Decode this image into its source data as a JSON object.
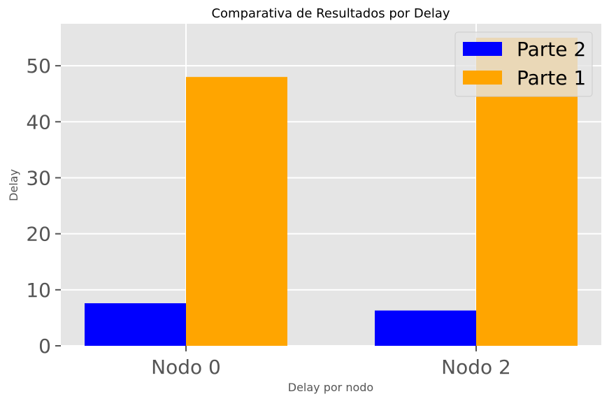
{
  "chart_data": {
    "type": "bar",
    "title": "Comparativa de Resultados por Delay",
    "xlabel": "Delay por nodo",
    "ylabel": "Delay",
    "categories": [
      "Nodo 0",
      "Nodo 2"
    ],
    "series": [
      {
        "name": "Parte 2",
        "values": [
          7.6,
          6.3
        ],
        "color": "#0000ff"
      },
      {
        "name": "Parte 1",
        "values": [
          48.0,
          55.0
        ],
        "color": "#ffa500"
      }
    ],
    "yticks": [
      0,
      10,
      20,
      30,
      40,
      50
    ],
    "ylim": [
      0,
      57.5
    ],
    "grid": true,
    "legend_position": "top-right",
    "colors": {
      "background": "#e5e5e5",
      "grid": "#ffffff",
      "tick": "#555555"
    }
  }
}
